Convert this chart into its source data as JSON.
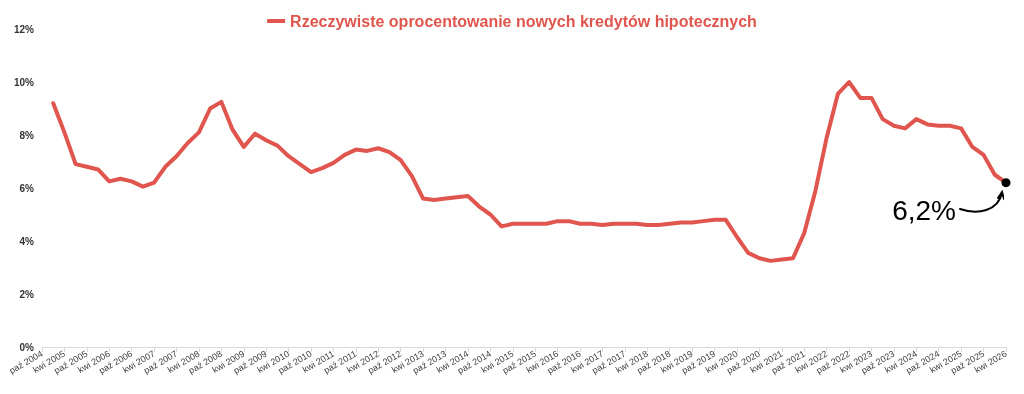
{
  "chart_data": {
    "type": "line",
    "categories": [
      "paź 2004",
      null,
      "kwi 2005",
      null,
      "paź 2005",
      null,
      "kwi 2006",
      null,
      "paź 2006",
      null,
      "kwi 2007",
      null,
      "paź 2007",
      null,
      "kwi 2008",
      null,
      "paź 2008",
      null,
      "kwi 2009",
      null,
      "paź 2009",
      null,
      "kwi 2010",
      null,
      "paź 2010",
      null,
      "kwi 2011",
      null,
      "paź 2011",
      null,
      "kwi 2012",
      null,
      "paź 2012",
      null,
      "kwi 2013",
      null,
      "paź 2013",
      null,
      "kwi 2014",
      null,
      "paź 2014",
      null,
      "kwi 2015",
      null,
      "paź 2015",
      null,
      "kwi 2016",
      null,
      "paź 2016",
      null,
      "kwi 2017",
      null,
      "paź 2017",
      null,
      "kwi 2018",
      null,
      "paź 2018",
      null,
      "kwi 2019",
      null,
      "paź 2019",
      null,
      "kwi 2020",
      null,
      "paź 2020",
      null,
      "kwi 2021",
      null,
      "paź 2021",
      null,
      "kwi 2022",
      null,
      "paź 2022",
      null,
      "kwi 2023",
      null,
      "paź 2023",
      null,
      "kwi 2024",
      null,
      "paź 2024",
      null,
      "kwi 2025",
      null,
      "paź 2025",
      null,
      "kwi 2026"
    ],
    "series": [
      {
        "name": "Rzeczywiste oprocentowanie nowych kredytów hipotecznych",
        "color": "#e0554d",
        "values": [
          null,
          9.2,
          8.1,
          6.9,
          6.8,
          6.7,
          6.25,
          6.35,
          6.25,
          6.05,
          6.2,
          6.8,
          7.2,
          7.7,
          8.1,
          9.0,
          9.25,
          8.2,
          7.55,
          8.05,
          7.8,
          7.6,
          7.2,
          6.9,
          6.6,
          6.75,
          6.95,
          7.25,
          7.45,
          7.4,
          7.5,
          7.35,
          7.05,
          6.45,
          5.6,
          5.55,
          5.6,
          5.65,
          5.7,
          5.3,
          5.0,
          4.55,
          4.65,
          4.65,
          4.65,
          4.65,
          4.75,
          4.75,
          4.65,
          4.65,
          4.6,
          4.65,
          4.65,
          4.65,
          4.6,
          4.6,
          4.65,
          4.7,
          4.7,
          4.75,
          4.8,
          4.8,
          4.15,
          3.55,
          3.35,
          3.25,
          3.3,
          3.35,
          4.3,
          5.9,
          7.9,
          9.55,
          10.0,
          9.4,
          9.4,
          8.6,
          8.35,
          8.25,
          8.6,
          8.4,
          8.35,
          8.35,
          8.25,
          7.55,
          7.25,
          6.5,
          6.2
        ]
      }
    ],
    "ylim": [
      0,
      12
    ],
    "yticks": [
      {
        "value": 0,
        "label": "0%"
      },
      {
        "value": 2,
        "label": "2%"
      },
      {
        "value": 4,
        "label": "4%"
      },
      {
        "value": 6,
        "label": "6%"
      },
      {
        "value": 8,
        "label": "8%"
      },
      {
        "value": 10,
        "label": "10%"
      },
      {
        "value": 12,
        "label": "12%"
      }
    ],
    "grid": false,
    "legend": "top",
    "marker": "none",
    "line_style": "solid",
    "annotations": [
      {
        "text": "6,2%",
        "x": "kwi 2026",
        "y": 6.2
      }
    ]
  }
}
